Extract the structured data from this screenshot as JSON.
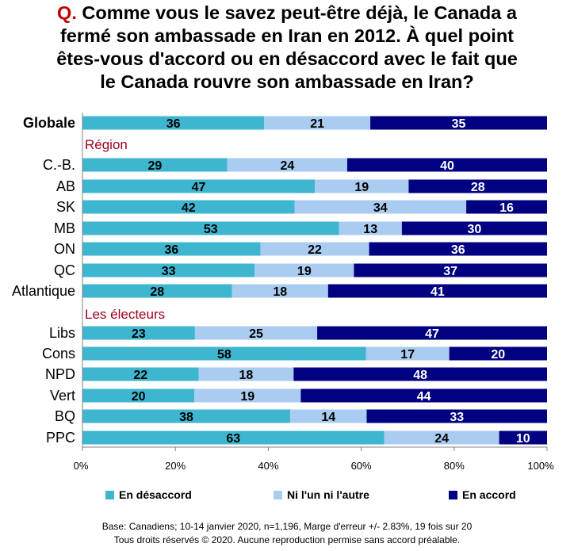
{
  "title": {
    "prefix": "Q.",
    "lines": [
      "Comme vous le savez peut-être déjà, le Canada a",
      "fermé son ambassade en Iran en 2012. À quel point",
      "êtes-vous d'accord ou en désaccord avec le fait que",
      "le Canada rouvre son ambassade en Iran?"
    ]
  },
  "chart_data": {
    "type": "bar",
    "orientation": "horizontal",
    "stacked": true,
    "normalized_to_100": true,
    "xlim": [
      0,
      100
    ],
    "xticks": [
      "0%",
      "20%",
      "40%",
      "60%",
      "80%",
      "100%"
    ],
    "categories": [
      "Globale",
      "C.-B.",
      "AB",
      "SK",
      "MB",
      "ON",
      "QC",
      "Atlantique",
      "Libs",
      "Cons",
      "NPD",
      "Vert",
      "BQ",
      "PPC"
    ],
    "group_headers": [
      {
        "label": "Région",
        "before": "C.-B."
      },
      {
        "label": "Les électeurs",
        "before": "Libs"
      }
    ],
    "series": [
      {
        "name": "En désaccord",
        "color": "#3fb6cf",
        "label_color": "#000000",
        "values": [
          36,
          29,
          47,
          42,
          53,
          36,
          33,
          28,
          23,
          58,
          22,
          20,
          38,
          63
        ]
      },
      {
        "name": "Ni l'un ni l'autre",
        "color": "#a9ccf0",
        "label_color": "#000000",
        "values": [
          21,
          24,
          19,
          34,
          13,
          22,
          19,
          18,
          25,
          17,
          18,
          19,
          14,
          24
        ]
      },
      {
        "name": "En accord",
        "color": "#000080",
        "label_color": "#ffffff",
        "values": [
          35,
          40,
          28,
          16,
          30,
          36,
          37,
          41,
          47,
          20,
          48,
          44,
          33,
          10
        ]
      }
    ],
    "legend_position": "bottom",
    "group_header_color": "#a0001e"
  },
  "footer": {
    "line1": "Base: Canadiens; 10-14 janvier 2020, n=1,196, Marge d'erreur +/- 2.83%, 19 fois sur 20",
    "line2": "Tous droits réservés © 2020. Aucune reproduction permise sans accord préalable."
  }
}
